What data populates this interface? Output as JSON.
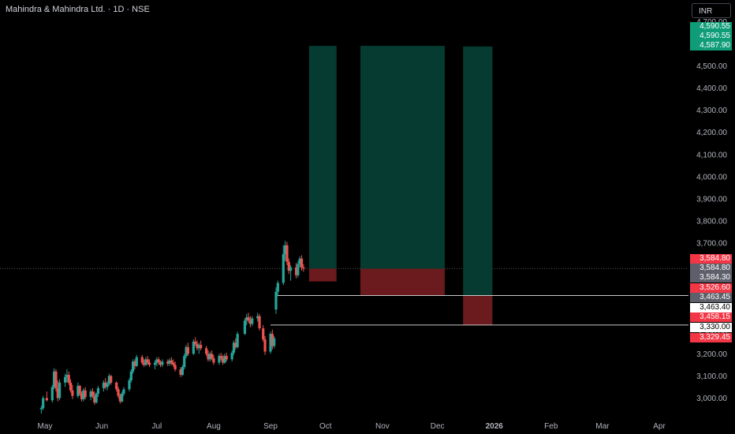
{
  "header": {
    "title": "Mahindra & Mahindra Ltd. · 1D · NSE"
  },
  "toolbar": {
    "currency": "INR"
  },
  "colors": {
    "up": "#26a69a",
    "down": "#ef5350",
    "target_zone": "#053b30",
    "stop_zone": "#6b1a1d",
    "background": "#000000"
  },
  "price_tags": [
    {
      "value": "4,590.55",
      "bg": "#0f9d78",
      "fg": "#ffffff"
    },
    {
      "value": "4,590.55",
      "bg": "#0f9d78",
      "fg": "#ffffff"
    },
    {
      "value": "4,587.90",
      "bg": "#0f9d78",
      "fg": "#ffffff"
    },
    {
      "value": "3,584.80",
      "bg": "#f23645",
      "fg": "#ffffff"
    },
    {
      "value": "3,584.80",
      "bg": "#5d606b",
      "fg": "#ffffff"
    },
    {
      "value": "3,584.30",
      "bg": "#5d606b",
      "fg": "#ffffff"
    },
    {
      "value": "3,526.60",
      "bg": "#f23645",
      "fg": "#ffffff"
    },
    {
      "value": "3,463.45",
      "bg": "#5d606b",
      "fg": "#ffffff"
    },
    {
      "value": "3,463.40",
      "bg": "#ffffff",
      "fg": "#000000"
    },
    {
      "value": "3,458.15",
      "bg": "#f23645",
      "fg": "#ffffff"
    },
    {
      "value": "3,330.00",
      "bg": "#ffffff",
      "fg": "#000000"
    },
    {
      "value": "3,329.45",
      "bg": "#f23645",
      "fg": "#ffffff"
    }
  ],
  "chart_data": {
    "type": "candlestick",
    "title": "Mahindra & Mahindra Ltd. · 1D · NSE",
    "currency": "INR",
    "ylim": [
      2940,
      4720
    ],
    "y_ticks": [
      "3,000.00",
      "3,100.00",
      "3,200.00",
      "3,300.00",
      "3,400.00",
      "3,500.00",
      "3,600.00",
      "3,700.00",
      "3,800.00",
      "3,900.00",
      "4,000.00",
      "4,100.00",
      "4,200.00",
      "4,300.00",
      "4,400.00",
      "4,500.00",
      "4,600.00",
      "4,700.00"
    ],
    "x_ticks": [
      {
        "label": "May",
        "date": "2025-05-01"
      },
      {
        "label": "Jun",
        "date": "2025-06-01"
      },
      {
        "label": "Jul",
        "date": "2025-07-01"
      },
      {
        "label": "Aug",
        "date": "2025-08-01"
      },
      {
        "label": "Sep",
        "date": "2025-09-01"
      },
      {
        "label": "Oct",
        "date": "2025-10-01"
      },
      {
        "label": "Nov",
        "date": "2025-11-01"
      },
      {
        "label": "Dec",
        "date": "2025-12-01"
      },
      {
        "label": "2026",
        "date": "2026-01-01"
      },
      {
        "label": "Feb",
        "date": "2026-02-01"
      },
      {
        "label": "Mar",
        "date": "2026-03-01"
      },
      {
        "label": "Apr",
        "date": "2026-04-01"
      }
    ],
    "candles": [
      {
        "d": "2025-04-29",
        "o": 2950,
        "h": 2965,
        "l": 2930,
        "c": 2955
      },
      {
        "d": "2025-04-30",
        "o": 2955,
        "h": 3010,
        "l": 2945,
        "c": 3000
      },
      {
        "d": "2025-05-02",
        "o": 3000,
        "h": 3030,
        "l": 2985,
        "c": 2990
      },
      {
        "d": "2025-05-05",
        "o": 2990,
        "h": 3060,
        "l": 2980,
        "c": 3050
      },
      {
        "d": "2025-05-06",
        "o": 3050,
        "h": 3135,
        "l": 3040,
        "c": 3120
      },
      {
        "d": "2025-05-07",
        "o": 3120,
        "h": 3130,
        "l": 3030,
        "c": 3045
      },
      {
        "d": "2025-05-08",
        "o": 3045,
        "h": 3080,
        "l": 2985,
        "c": 3000
      },
      {
        "d": "2025-05-09",
        "o": 3000,
        "h": 3085,
        "l": 2990,
        "c": 3070
      },
      {
        "d": "2025-05-12",
        "o": 3070,
        "h": 3110,
        "l": 3050,
        "c": 3095
      },
      {
        "d": "2025-05-13",
        "o": 3095,
        "h": 3130,
        "l": 3070,
        "c": 3105
      },
      {
        "d": "2025-05-14",
        "o": 3105,
        "h": 3120,
        "l": 3060,
        "c": 3070
      },
      {
        "d": "2025-05-15",
        "o": 3070,
        "h": 3085,
        "l": 3025,
        "c": 3035
      },
      {
        "d": "2025-05-16",
        "o": 3035,
        "h": 3060,
        "l": 2995,
        "c": 3010
      },
      {
        "d": "2025-05-19",
        "o": 3010,
        "h": 3070,
        "l": 3000,
        "c": 3055
      },
      {
        "d": "2025-05-20",
        "o": 3055,
        "h": 3060,
        "l": 3010,
        "c": 3020
      },
      {
        "d": "2025-05-21",
        "o": 3020,
        "h": 3030,
        "l": 2985,
        "c": 2995
      },
      {
        "d": "2025-05-22",
        "o": 2995,
        "h": 3045,
        "l": 2985,
        "c": 3035
      },
      {
        "d": "2025-05-23",
        "o": 3035,
        "h": 3050,
        "l": 2995,
        "c": 3005
      },
      {
        "d": "2025-05-26",
        "o": 3005,
        "h": 3040,
        "l": 2990,
        "c": 3030
      },
      {
        "d": "2025-05-27",
        "o": 3030,
        "h": 3045,
        "l": 3000,
        "c": 3010
      },
      {
        "d": "2025-05-28",
        "o": 3010,
        "h": 3030,
        "l": 2970,
        "c": 2980
      },
      {
        "d": "2025-05-29",
        "o": 2980,
        "h": 3025,
        "l": 2975,
        "c": 3020
      },
      {
        "d": "2025-05-30",
        "o": 3020,
        "h": 3055,
        "l": 3005,
        "c": 3045
      },
      {
        "d": "2025-06-02",
        "o": 3045,
        "h": 3080,
        "l": 3030,
        "c": 3070
      },
      {
        "d": "2025-06-03",
        "o": 3070,
        "h": 3090,
        "l": 3040,
        "c": 3050
      },
      {
        "d": "2025-06-04",
        "o": 3050,
        "h": 3075,
        "l": 3035,
        "c": 3065
      },
      {
        "d": "2025-06-05",
        "o": 3065,
        "h": 3110,
        "l": 3055,
        "c": 3100
      },
      {
        "d": "2025-06-06",
        "o": 3100,
        "h": 3105,
        "l": 3060,
        "c": 3070
      },
      {
        "d": "2025-06-09",
        "o": 3070,
        "h": 3075,
        "l": 3030,
        "c": 3040
      },
      {
        "d": "2025-06-10",
        "o": 3040,
        "h": 3050,
        "l": 3000,
        "c": 3010
      },
      {
        "d": "2025-06-11",
        "o": 3010,
        "h": 3020,
        "l": 2975,
        "c": 2985
      },
      {
        "d": "2025-06-12",
        "o": 2985,
        "h": 3030,
        "l": 2980,
        "c": 3020
      },
      {
        "d": "2025-06-13",
        "o": 3020,
        "h": 3050,
        "l": 3010,
        "c": 3040
      },
      {
        "d": "2025-06-16",
        "o": 3040,
        "h": 3090,
        "l": 3030,
        "c": 3080
      },
      {
        "d": "2025-06-17",
        "o": 3080,
        "h": 3130,
        "l": 3070,
        "c": 3120
      },
      {
        "d": "2025-06-18",
        "o": 3120,
        "h": 3175,
        "l": 3110,
        "c": 3165
      },
      {
        "d": "2025-06-19",
        "o": 3165,
        "h": 3175,
        "l": 3130,
        "c": 3145
      },
      {
        "d": "2025-06-20",
        "o": 3145,
        "h": 3195,
        "l": 3140,
        "c": 3185
      },
      {
        "d": "2025-06-23",
        "o": 3185,
        "h": 3195,
        "l": 3150,
        "c": 3160
      },
      {
        "d": "2025-06-24",
        "o": 3160,
        "h": 3175,
        "l": 3140,
        "c": 3150
      },
      {
        "d": "2025-06-25",
        "o": 3150,
        "h": 3185,
        "l": 3145,
        "c": 3175
      },
      {
        "d": "2025-06-26",
        "o": 3175,
        "h": 3190,
        "l": 3150,
        "c": 3160
      },
      {
        "d": "2025-06-27",
        "o": 3160,
        "h": 3175,
        "l": 3140,
        "c": 3150
      },
      {
        "d": "2025-06-30",
        "o": 3150,
        "h": 3170,
        "l": 3130,
        "c": 3160
      },
      {
        "d": "2025-07-01",
        "o": 3160,
        "h": 3185,
        "l": 3145,
        "c": 3175
      },
      {
        "d": "2025-07-02",
        "o": 3175,
        "h": 3185,
        "l": 3150,
        "c": 3160
      },
      {
        "d": "2025-07-03",
        "o": 3160,
        "h": 3170,
        "l": 3140,
        "c": 3150
      },
      {
        "d": "2025-07-04",
        "o": 3150,
        "h": 3175,
        "l": 3140,
        "c": 3165
      },
      {
        "d": "2025-07-07",
        "o": 3165,
        "h": 3175,
        "l": 3145,
        "c": 3155
      },
      {
        "d": "2025-07-08",
        "o": 3155,
        "h": 3180,
        "l": 3145,
        "c": 3170
      },
      {
        "d": "2025-07-09",
        "o": 3170,
        "h": 3185,
        "l": 3150,
        "c": 3160
      },
      {
        "d": "2025-07-10",
        "o": 3160,
        "h": 3175,
        "l": 3140,
        "c": 3150
      },
      {
        "d": "2025-07-11",
        "o": 3150,
        "h": 3165,
        "l": 3120,
        "c": 3130
      },
      {
        "d": "2025-07-14",
        "o": 3130,
        "h": 3140,
        "l": 3095,
        "c": 3105
      },
      {
        "d": "2025-07-15",
        "o": 3105,
        "h": 3150,
        "l": 3100,
        "c": 3140
      },
      {
        "d": "2025-07-16",
        "o": 3140,
        "h": 3200,
        "l": 3130,
        "c": 3190
      },
      {
        "d": "2025-07-17",
        "o": 3190,
        "h": 3240,
        "l": 3180,
        "c": 3230
      },
      {
        "d": "2025-07-18",
        "o": 3230,
        "h": 3250,
        "l": 3190,
        "c": 3200
      },
      {
        "d": "2025-07-21",
        "o": 3200,
        "h": 3265,
        "l": 3195,
        "c": 3255
      },
      {
        "d": "2025-07-22",
        "o": 3255,
        "h": 3275,
        "l": 3235,
        "c": 3245
      },
      {
        "d": "2025-07-23",
        "o": 3245,
        "h": 3260,
        "l": 3215,
        "c": 3225
      },
      {
        "d": "2025-07-24",
        "o": 3225,
        "h": 3250,
        "l": 3200,
        "c": 3240
      },
      {
        "d": "2025-07-25",
        "o": 3240,
        "h": 3260,
        "l": 3215,
        "c": 3225
      },
      {
        "d": "2025-07-28",
        "o": 3225,
        "h": 3235,
        "l": 3190,
        "c": 3200
      },
      {
        "d": "2025-07-29",
        "o": 3200,
        "h": 3215,
        "l": 3165,
        "c": 3175
      },
      {
        "d": "2025-07-30",
        "o": 3175,
        "h": 3210,
        "l": 3165,
        "c": 3200
      },
      {
        "d": "2025-07-31",
        "o": 3200,
        "h": 3215,
        "l": 3170,
        "c": 3180
      },
      {
        "d": "2025-08-01",
        "o": 3180,
        "h": 3195,
        "l": 3150,
        "c": 3160
      },
      {
        "d": "2025-08-04",
        "o": 3160,
        "h": 3200,
        "l": 3150,
        "c": 3190
      },
      {
        "d": "2025-08-05",
        "o": 3190,
        "h": 3205,
        "l": 3170,
        "c": 3180
      },
      {
        "d": "2025-08-06",
        "o": 3180,
        "h": 3195,
        "l": 3150,
        "c": 3160
      },
      {
        "d": "2025-08-07",
        "o": 3160,
        "h": 3200,
        "l": 3155,
        "c": 3190
      },
      {
        "d": "2025-08-08",
        "o": 3190,
        "h": 3205,
        "l": 3165,
        "c": 3175
      },
      {
        "d": "2025-08-11",
        "o": 3175,
        "h": 3215,
        "l": 3165,
        "c": 3205
      },
      {
        "d": "2025-08-12",
        "o": 3205,
        "h": 3260,
        "l": 3195,
        "c": 3250
      },
      {
        "d": "2025-08-13",
        "o": 3250,
        "h": 3270,
        "l": 3220,
        "c": 3230
      },
      {
        "d": "2025-08-14",
        "o": 3230,
        "h": 3300,
        "l": 3225,
        "c": 3290
      },
      {
        "d": "2025-08-18",
        "o": 3290,
        "h": 3360,
        "l": 3285,
        "c": 3350
      },
      {
        "d": "2025-08-19",
        "o": 3350,
        "h": 3380,
        "l": 3330,
        "c": 3365
      },
      {
        "d": "2025-08-20",
        "o": 3365,
        "h": 3385,
        "l": 3340,
        "c": 3350
      },
      {
        "d": "2025-08-21",
        "o": 3350,
        "h": 3370,
        "l": 3320,
        "c": 3335
      },
      {
        "d": "2025-08-22",
        "o": 3335,
        "h": 3370,
        "l": 3325,
        "c": 3360
      },
      {
        "d": "2025-08-25",
        "o": 3360,
        "h": 3385,
        "l": 3345,
        "c": 3370
      },
      {
        "d": "2025-08-26",
        "o": 3370,
        "h": 3380,
        "l": 3305,
        "c": 3315
      },
      {
        "d": "2025-08-28",
        "o": 3315,
        "h": 3330,
        "l": 3255,
        "c": 3265
      },
      {
        "d": "2025-08-29",
        "o": 3265,
        "h": 3280,
        "l": 3195,
        "c": 3210
      },
      {
        "d": "2025-09-01",
        "o": 3210,
        "h": 3300,
        "l": 3200,
        "c": 3290
      },
      {
        "d": "2025-09-02",
        "o": 3290,
        "h": 3310,
        "l": 3220,
        "c": 3235
      },
      {
        "d": "2025-09-03",
        "o": 3235,
        "h": 3280,
        "l": 3225,
        "c": 3270
      },
      {
        "d": "2025-09-04",
        "o": 3400,
        "h": 3500,
        "l": 3380,
        "c": 3480
      },
      {
        "d": "2025-09-05",
        "o": 3480,
        "h": 3530,
        "l": 3460,
        "c": 3520
      },
      {
        "d": "2025-09-08",
        "o": 3520,
        "h": 3690,
        "l": 3510,
        "c": 3650
      },
      {
        "d": "2025-09-09",
        "o": 3650,
        "h": 3710,
        "l": 3620,
        "c": 3690
      },
      {
        "d": "2025-09-10",
        "o": 3690,
        "h": 3705,
        "l": 3600,
        "c": 3615
      },
      {
        "d": "2025-09-11",
        "o": 3615,
        "h": 3630,
        "l": 3560,
        "c": 3575
      },
      {
        "d": "2025-09-12",
        "o": 3575,
        "h": 3600,
        "l": 3530,
        "c": 3590
      },
      {
        "d": "2025-09-15",
        "o": 3590,
        "h": 3610,
        "l": 3540,
        "c": 3555
      },
      {
        "d": "2025-09-16",
        "o": 3555,
        "h": 3620,
        "l": 3545,
        "c": 3605
      },
      {
        "d": "2025-09-17",
        "o": 3605,
        "h": 3640,
        "l": 3590,
        "c": 3630
      },
      {
        "d": "2025-09-18",
        "o": 3630,
        "h": 3645,
        "l": 3575,
        "c": 3590
      },
      {
        "d": "2025-09-19",
        "o": 3590,
        "h": 3605,
        "l": 3570,
        "c": 3585
      }
    ],
    "positions": [
      {
        "name": "trade-1",
        "start": "2025-09-22",
        "end": "2025-10-07",
        "target": 4590.55,
        "entry": 3584.8,
        "stop": 3526.6
      },
      {
        "name": "trade-2",
        "start": "2025-10-20",
        "end": "2025-12-05",
        "target": 4590.55,
        "entry": 3584.3,
        "stop": 3463.45
      },
      {
        "name": "trade-3",
        "start": "2025-12-15",
        "end": "2025-12-31",
        "target": 4587.9,
        "entry": 3463.4,
        "stop": 3330.0
      }
    ],
    "horizontal_lines": [
      {
        "start": "2025-09-04",
        "price": 3463.4
      },
      {
        "start": "2025-09-01",
        "price": 3330.0
      }
    ],
    "current_price_line": 3584.8,
    "grid": false
  }
}
